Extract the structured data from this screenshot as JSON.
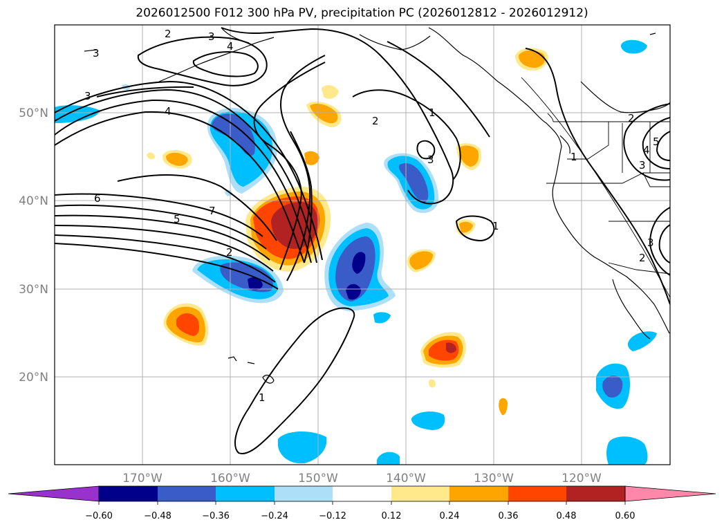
{
  "title": "2026012500 F012 300 hPa PV, precipitation PC (2026012812 - 2026012912)",
  "map": {
    "lat_labels": [
      "50°N",
      "40°N",
      "30°N",
      "20°N"
    ],
    "lon_labels": [
      "170°W",
      "160°W",
      "150°W",
      "140°W",
      "130°W",
      "120°W"
    ],
    "lon_extent_deg": [
      -180,
      -110
    ],
    "lat_extent_deg": [
      10,
      60
    ]
  },
  "colorbar": {
    "ticks": [
      "−0.60",
      "−0.48",
      "−0.36",
      "−0.24",
      "−0.12",
      "0.12",
      "0.24",
      "0.36",
      "0.48",
      "0.60"
    ],
    "tick_values": [
      -0.6,
      -0.48,
      -0.36,
      -0.24,
      -0.12,
      0.12,
      0.24,
      0.36,
      0.48,
      0.6
    ],
    "colors": [
      "#9932CC",
      "#00008B",
      "#3A5CC8",
      "#00BFFF",
      "#ADE0F8",
      "#FFFFFF",
      "#FFE98A",
      "#FFA500",
      "#FF4500",
      "#B22222",
      "#FF88AA"
    ]
  },
  "contour_labels": {
    "c2a": "2",
    "c3a": "3",
    "c4a": "4",
    "c3b": "3",
    "c3c": "3",
    "c4b": "4",
    "c6": "6",
    "c5": "5",
    "c7": "7",
    "c2b": "2",
    "c2c": "2",
    "c1a": "1",
    "c3d": "3",
    "c1b": "1",
    "c1c": "1",
    "c2d": "2",
    "c4c": "4",
    "c5b": "5",
    "c3e": "3",
    "c2e": "2",
    "c3f": "3",
    "c1d": "1"
  }
}
